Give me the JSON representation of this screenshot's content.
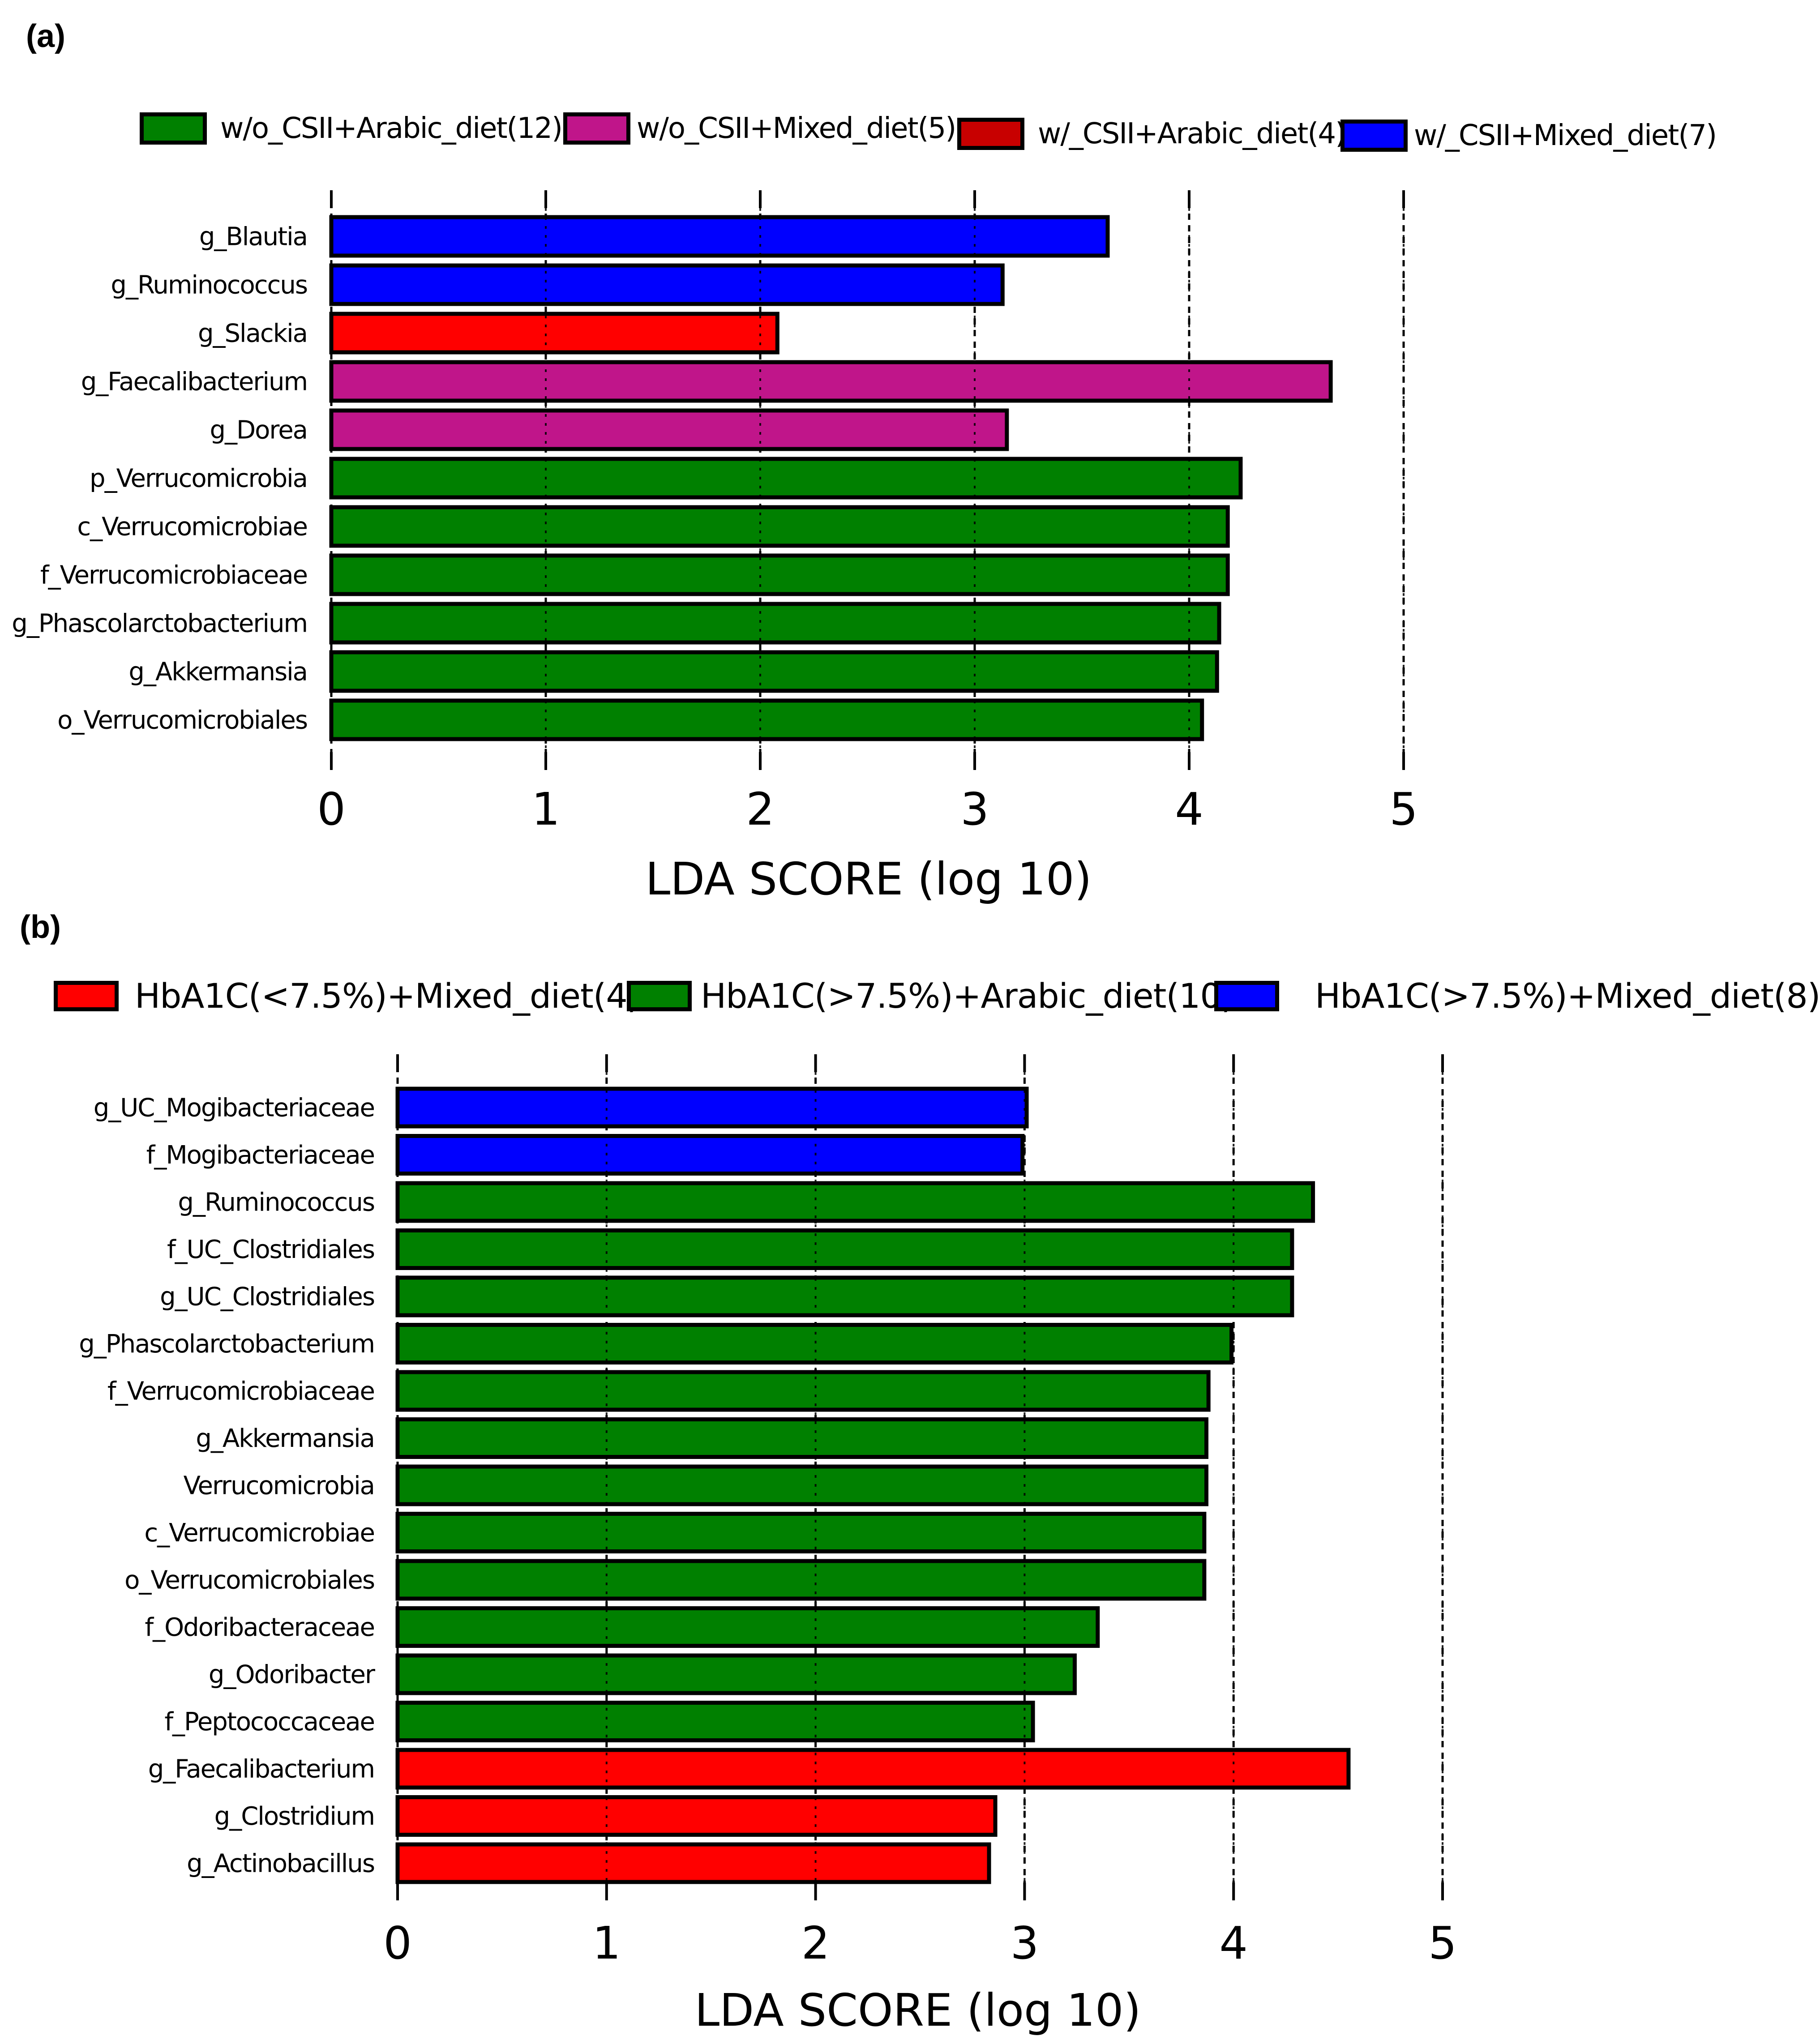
{
  "chart_data": [
    {
      "panel_label": "(a)",
      "type": "bar",
      "orientation": "horizontal",
      "xlabel": "LDA SCORE (log 10)",
      "xlim": [
        0,
        5
      ],
      "xticks": [
        "0",
        "1",
        "2",
        "3",
        "4",
        "5"
      ],
      "grid": "dashed vertical lines at ticks",
      "legend": [
        {
          "label": "w/o_CSII+Arabic_diet(12)",
          "color": "#008000"
        },
        {
          "label": "w/o_CSII+Mixed_diet(5)",
          "color": "#c0158a"
        },
        {
          "label": "w/_CSII+Arabic_diet(4)",
          "color": "#c80000"
        },
        {
          "label": "w/_CSII+Mixed_diet(7)",
          "color": "#0000ff"
        }
      ],
      "bars": [
        {
          "label": "g_Blautia",
          "value": 3.62,
          "color": "#0000ff"
        },
        {
          "label": "g_Ruminococcus",
          "value": 3.13,
          "color": "#0000ff"
        },
        {
          "label": "g_Slackia",
          "value": 2.08,
          "color": "#ff0000"
        },
        {
          "label": "g_Faecalibacterium",
          "value": 4.66,
          "color": "#c0158a"
        },
        {
          "label": "g_Dorea",
          "value": 3.15,
          "color": "#c0158a"
        },
        {
          "label": "p_Verrucomicrobia",
          "value": 4.24,
          "color": "#008000"
        },
        {
          "label": "c_Verrucomicrobiae",
          "value": 4.18,
          "color": "#008000"
        },
        {
          "label": "f_Verrucomicrobiaceae",
          "value": 4.18,
          "color": "#008000"
        },
        {
          "label": "g_Phascolarctobacterium",
          "value": 4.14,
          "color": "#008000"
        },
        {
          "label": "g_Akkermansia",
          "value": 4.13,
          "color": "#008000"
        },
        {
          "label": "o_Verrucomicrobiales",
          "value": 4.06,
          "color": "#008000"
        }
      ]
    },
    {
      "panel_label": "(b)",
      "type": "bar",
      "orientation": "horizontal",
      "xlabel": "LDA SCORE (log 10)",
      "xlim": [
        0,
        5
      ],
      "xticks": [
        "0",
        "1",
        "2",
        "3",
        "4",
        "5"
      ],
      "grid": "dashed vertical lines at ticks",
      "legend": [
        {
          "label": "HbA1C(<7.5%)+Mixed_diet(4)",
          "color": "#ff0000"
        },
        {
          "label": "HbA1C(>7.5%)+Arabic_diet(10)",
          "color": "#008000"
        },
        {
          "label": "HbA1C(>7.5%)+Mixed_diet(8)",
          "color": "#0000ff"
        }
      ],
      "bars": [
        {
          "label": "g_UC_Mogibacteriaceae",
          "value": 3.01,
          "color": "#0000ff"
        },
        {
          "label": "f_Mogibacteriaceae",
          "value": 2.99,
          "color": "#0000ff"
        },
        {
          "label": "g_Ruminococcus",
          "value": 4.38,
          "color": "#008000"
        },
        {
          "label": "f_UC_Clostridiales",
          "value": 4.28,
          "color": "#008000"
        },
        {
          "label": "g_UC_Clostridiales",
          "value": 4.28,
          "color": "#008000"
        },
        {
          "label": "g_Phascolarctobacterium",
          "value": 3.99,
          "color": "#008000"
        },
        {
          "label": "f_Verrucomicrobiaceae",
          "value": 3.88,
          "color": "#008000"
        },
        {
          "label": "g_Akkermansia",
          "value": 3.87,
          "color": "#008000"
        },
        {
          "label": "Verrucomicrobia",
          "value": 3.87,
          "color": "#008000"
        },
        {
          "label": "c_Verrucomicrobiae",
          "value": 3.86,
          "color": "#008000"
        },
        {
          "label": "o_Verrucomicrobiales",
          "value": 3.86,
          "color": "#008000"
        },
        {
          "label": "f_Odoribacteraceae",
          "value": 3.35,
          "color": "#008000"
        },
        {
          "label": "g_Odoribacter",
          "value": 3.24,
          "color": "#008000"
        },
        {
          "label": "f_Peptococcaceae",
          "value": 3.04,
          "color": "#008000"
        },
        {
          "label": "g_Faecalibacterium",
          "value": 4.55,
          "color": "#ff0000"
        },
        {
          "label": "g_Clostridium",
          "value": 2.86,
          "color": "#ff0000"
        },
        {
          "label": "g_Actinobacillus",
          "value": 2.83,
          "color": "#ff0000"
        }
      ]
    }
  ]
}
